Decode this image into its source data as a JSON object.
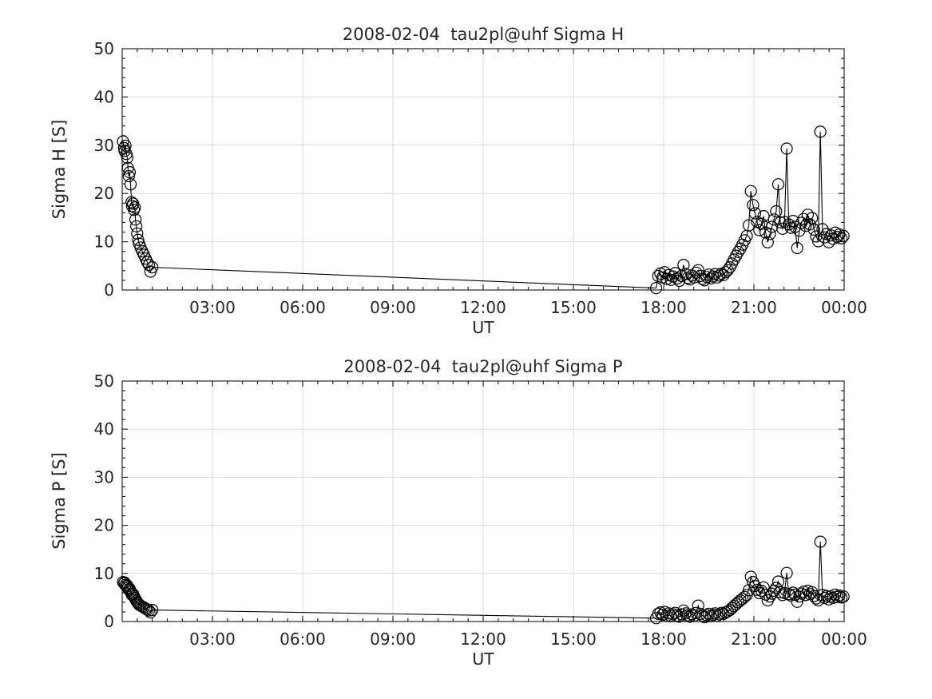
{
  "colors": {
    "background": "#ffffff",
    "line": "#000000",
    "marker": "#000000",
    "grid": "#dbdbdb",
    "axis": "#262626",
    "text": "#262626"
  },
  "chart_data": [
    {
      "type": "line",
      "subtype": "time-series with open circle markers",
      "title": "2008-02-04  tau2pl@uhf Sigma H",
      "xlabel": "UT",
      "ylabel": "Sigma H [S]",
      "xlim": [
        0,
        24
      ],
      "ylim": [
        0,
        50
      ],
      "grid": true,
      "x_major_ticks": [
        3,
        6,
        9,
        12,
        15,
        18,
        21,
        24
      ],
      "x_tick_labels": [
        "03:00",
        "06:00",
        "09:00",
        "12:00",
        "15:00",
        "18:00",
        "21:00",
        "00:00"
      ],
      "x_minor_step": 0.5,
      "y_major_ticks": [
        0,
        10,
        20,
        30,
        40,
        50
      ],
      "y_tick_labels": [
        "0",
        "10",
        "20",
        "30",
        "40",
        "50"
      ],
      "y_minor_step": 2,
      "x": [
        0.03,
        0.06,
        0.08,
        0.11,
        0.14,
        0.17,
        0.19,
        0.22,
        0.25,
        0.28,
        0.31,
        0.33,
        0.36,
        0.39,
        0.42,
        0.44,
        0.47,
        0.5,
        0.53,
        0.56,
        0.61,
        0.67,
        0.72,
        0.78,
        0.83,
        0.89,
        0.94,
        1.0,
        17.75,
        17.82,
        17.89,
        17.96,
        18.03,
        18.1,
        18.17,
        18.24,
        18.31,
        18.38,
        18.45,
        18.52,
        18.59,
        18.66,
        18.73,
        18.8,
        18.87,
        18.94,
        19.01,
        19.08,
        19.15,
        19.22,
        19.29,
        19.36,
        19.43,
        19.5,
        19.57,
        19.64,
        19.71,
        19.78,
        19.85,
        19.92,
        19.99,
        20.06,
        20.13,
        20.2,
        20.27,
        20.34,
        20.41,
        20.48,
        20.55,
        20.62,
        20.69,
        20.76,
        20.83,
        20.9,
        20.97,
        21.04,
        21.11,
        21.18,
        21.25,
        21.32,
        21.39,
        21.46,
        21.53,
        21.6,
        21.67,
        21.74,
        21.81,
        21.88,
        21.95,
        22.02,
        22.09,
        22.16,
        22.23,
        22.3,
        22.37,
        22.44,
        22.51,
        22.58,
        22.65,
        22.72,
        22.79,
        22.86,
        22.93,
        23.0,
        23.07,
        23.14,
        23.21,
        23.28,
        23.35,
        23.42,
        23.49,
        23.56,
        23.63,
        23.7,
        23.77,
        23.84,
        23.91,
        23.98
      ],
      "y": [
        30.8,
        29.4,
        28.8,
        29.9,
        28.2,
        27.4,
        25.3,
        23.6,
        24.4,
        21.9,
        18.2,
        17.4,
        17.9,
        16.6,
        17.1,
        14.6,
        13.2,
        11.7,
        10.4,
        9.6,
        8.8,
        8.0,
        7.3,
        6.5,
        5.8,
        5.2,
        3.8,
        4.7,
        0.4,
        2.9,
        3.4,
        2.6,
        3.7,
        2.3,
        3.1,
        2.1,
        2.8,
        3.5,
        2.4,
        1.9,
        2.9,
        5.2,
        3.3,
        2.5,
        2.2,
        3.0,
        2.6,
        3.6,
        4.1,
        2.9,
        2.3,
        2.0,
        2.7,
        3.2,
        2.4,
        2.8,
        3.3,
        2.6,
        3.0,
        3.4,
        3.1,
        3.7,
        4.1,
        4.7,
        5.5,
        6.3,
        7.1,
        7.9,
        8.6,
        9.4,
        10.3,
        11.2,
        13.4,
        20.5,
        17.6,
        15.9,
        14.1,
        12.4,
        13.7,
        15.3,
        11.9,
        9.9,
        11.6,
        13.1,
        14.6,
        16.3,
        21.9,
        14.0,
        12.7,
        14.1,
        29.3,
        13.6,
        12.9,
        14.3,
        13.1,
        8.7,
        12.3,
        13.9,
        14.7,
        13.3,
        15.6,
        13.6,
        14.9,
        12.5,
        11.1,
        10.1,
        32.8,
        12.6,
        10.9,
        11.6,
        9.9,
        11.3,
        10.6,
        11.9,
        11.0,
        11.5,
        10.7,
        11.2
      ]
    },
    {
      "type": "line",
      "subtype": "time-series with open circle markers",
      "title": "2008-02-04  tau2pl@uhf Sigma P",
      "xlabel": "UT",
      "ylabel": "Sigma P [S]",
      "xlim": [
        0,
        24
      ],
      "ylim": [
        0,
        50
      ],
      "grid": true,
      "x_major_ticks": [
        3,
        6,
        9,
        12,
        15,
        18,
        21,
        24
      ],
      "x_tick_labels": [
        "03:00",
        "06:00",
        "09:00",
        "12:00",
        "15:00",
        "18:00",
        "21:00",
        "00:00"
      ],
      "x_minor_step": 0.5,
      "y_major_ticks": [
        0,
        10,
        20,
        30,
        40,
        50
      ],
      "y_tick_labels": [
        "0",
        "10",
        "20",
        "30",
        "40",
        "50"
      ],
      "y_minor_step": 2,
      "x": [
        0.03,
        0.06,
        0.08,
        0.11,
        0.14,
        0.17,
        0.19,
        0.22,
        0.25,
        0.28,
        0.31,
        0.33,
        0.36,
        0.39,
        0.42,
        0.44,
        0.47,
        0.5,
        0.53,
        0.56,
        0.61,
        0.67,
        0.72,
        0.78,
        0.83,
        0.89,
        0.94,
        1.0,
        17.75,
        17.82,
        17.89,
        17.96,
        18.03,
        18.1,
        18.17,
        18.24,
        18.31,
        18.38,
        18.45,
        18.52,
        18.59,
        18.66,
        18.73,
        18.8,
        18.87,
        18.94,
        19.01,
        19.08,
        19.15,
        19.22,
        19.29,
        19.36,
        19.43,
        19.5,
        19.57,
        19.64,
        19.71,
        19.78,
        19.85,
        19.92,
        19.99,
        20.06,
        20.13,
        20.2,
        20.27,
        20.34,
        20.41,
        20.48,
        20.55,
        20.62,
        20.69,
        20.76,
        20.83,
        20.9,
        20.97,
        21.04,
        21.11,
        21.18,
        21.25,
        21.32,
        21.39,
        21.46,
        21.53,
        21.6,
        21.67,
        21.74,
        21.81,
        21.88,
        21.95,
        22.02,
        22.09,
        22.16,
        22.23,
        22.3,
        22.37,
        22.44,
        22.51,
        22.58,
        22.65,
        22.72,
        22.79,
        22.86,
        22.93,
        23.0,
        23.07,
        23.14,
        23.21,
        23.28,
        23.35,
        23.42,
        23.49,
        23.56,
        23.63,
        23.7,
        23.77,
        23.84,
        23.91,
        23.98
      ],
      "y": [
        8.2,
        7.9,
        8.1,
        7.6,
        7.3,
        7.5,
        7.0,
        6.6,
        6.8,
        6.2,
        5.8,
        5.5,
        5.7,
        5.2,
        4.9,
        4.6,
        4.3,
        4.0,
        3.8,
        3.5,
        3.3,
        3.1,
        2.9,
        2.7,
        2.5,
        2.3,
        1.9,
        2.4,
        0.7,
        1.6,
        1.9,
        1.4,
        2.0,
        1.2,
        1.7,
        1.1,
        1.5,
        1.8,
        1.2,
        1.0,
        1.5,
        2.3,
        1.7,
        1.3,
        1.0,
        1.5,
        1.2,
        1.8,
        3.3,
        1.6,
        1.2,
        0.9,
        1.3,
        1.6,
        1.1,
        1.4,
        1.7,
        1.2,
        1.5,
        1.8,
        1.6,
        1.9,
        2.1,
        2.4,
        2.8,
        3.2,
        3.6,
        4.0,
        4.4,
        4.7,
        5.1,
        5.5,
        6.5,
        9.3,
        8.2,
        7.4,
        6.6,
        5.9,
        6.4,
        7.1,
        5.6,
        4.4,
        5.2,
        5.8,
        6.4,
        7.0,
        8.3,
        6.1,
        5.5,
        5.9,
        10.1,
        5.7,
        5.4,
        6.0,
        5.6,
        4.1,
        5.2,
        5.8,
        6.2,
        5.5,
        6.4,
        5.7,
        6.1,
        5.3,
        4.8,
        4.4,
        16.6,
        5.5,
        4.9,
        5.3,
        4.6,
        5.2,
        4.9,
        5.6,
        5.1,
        5.4,
        5.0,
        5.2
      ]
    }
  ]
}
